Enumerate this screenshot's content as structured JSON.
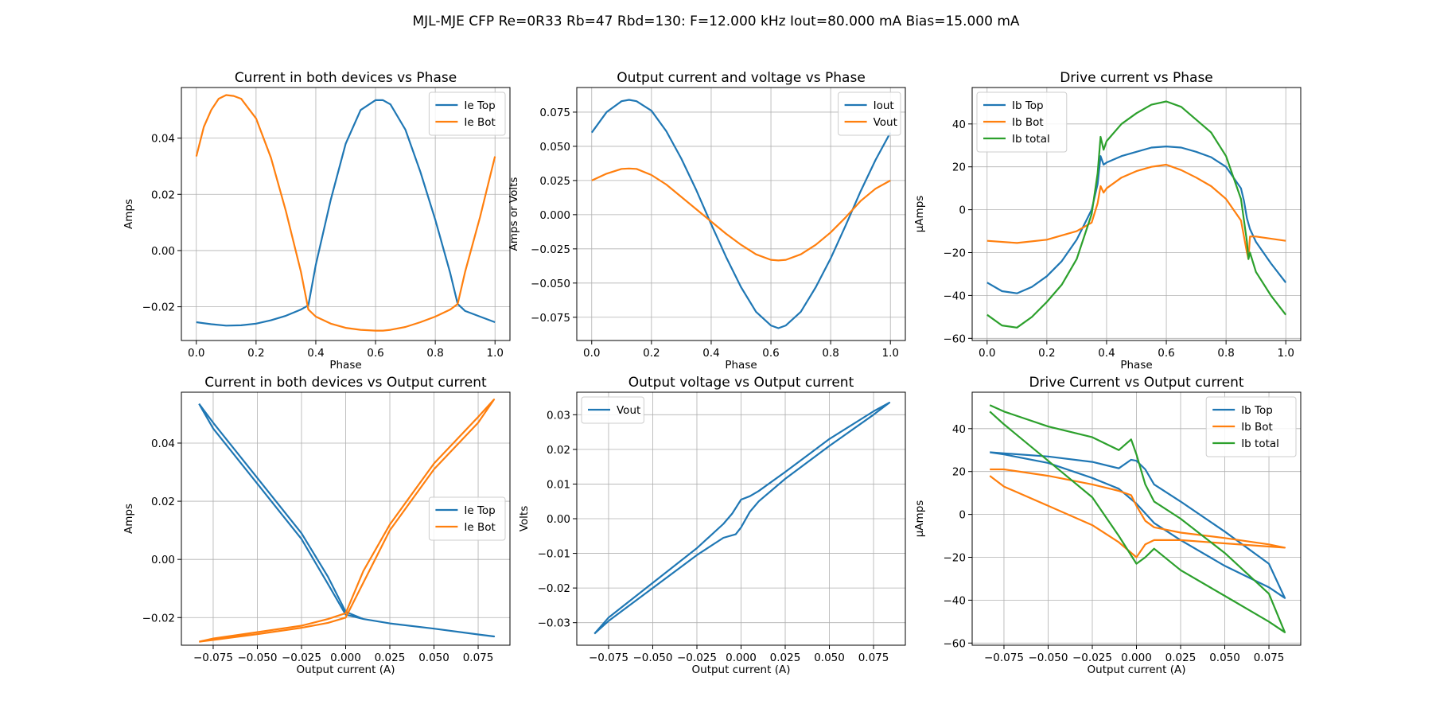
{
  "figure": {
    "suptitle": "MJL-MJE CFP Re=0R33 Rb=47 Rbd=130: F=12.000 kHz Iout=80.000 mA Bias=15.000 mA"
  },
  "colors": {
    "c0": "#1f77b4",
    "c1": "#ff7f0e",
    "c2": "#2ca02c"
  },
  "chart_data": [
    {
      "type": "line",
      "title": "Current in both devices vs Phase",
      "xlabel": "Phase",
      "ylabel": "Amps",
      "xlim": [
        -0.05,
        1.05
      ],
      "ylim": [
        -0.032,
        0.058
      ],
      "xticks": [
        0.0,
        0.2,
        0.4,
        0.6,
        0.8,
        1.0
      ],
      "xtick_labels": [
        "0.0",
        "0.2",
        "0.4",
        "0.6",
        "0.8",
        "1.0"
      ],
      "yticks": [
        -0.02,
        0.0,
        0.02,
        0.04
      ],
      "ytick_labels": [
        "−0.02",
        "0.00",
        "0.02",
        "0.04"
      ],
      "grid": true,
      "legend": "upper-right",
      "series": [
        {
          "name": "Ie Top",
          "color": "#1f77b4",
          "x": [
            0.0,
            0.05,
            0.1,
            0.15,
            0.2,
            0.25,
            0.3,
            0.35,
            0.375,
            0.4,
            0.45,
            0.5,
            0.55,
            0.6,
            0.625,
            0.65,
            0.7,
            0.75,
            0.8,
            0.85,
            0.875,
            0.9,
            0.95,
            1.0
          ],
          "y": [
            -0.0255,
            -0.0262,
            -0.0267,
            -0.0266,
            -0.026,
            -0.0248,
            -0.0232,
            -0.021,
            -0.0195,
            -0.005,
            0.018,
            0.038,
            0.05,
            0.0535,
            0.0535,
            0.052,
            0.043,
            0.028,
            0.011,
            -0.008,
            -0.019,
            -0.0215,
            -0.0235,
            -0.0255
          ]
        },
        {
          "name": "Ie Bot",
          "color": "#ff7f0e",
          "x": [
            0.0,
            0.025,
            0.05,
            0.075,
            0.1,
            0.125,
            0.15,
            0.2,
            0.25,
            0.3,
            0.35,
            0.375,
            0.4,
            0.45,
            0.5,
            0.55,
            0.6,
            0.625,
            0.65,
            0.7,
            0.75,
            0.8,
            0.85,
            0.875,
            0.9,
            0.95,
            1.0
          ],
          "y": [
            0.0335,
            0.044,
            0.05,
            0.054,
            0.0553,
            0.055,
            0.054,
            0.047,
            0.033,
            0.014,
            -0.0075,
            -0.021,
            -0.0235,
            -0.026,
            -0.0275,
            -0.0282,
            -0.0285,
            -0.0285,
            -0.0282,
            -0.0272,
            -0.0255,
            -0.0235,
            -0.021,
            -0.019,
            -0.0075,
            0.012,
            0.0335
          ]
        }
      ]
    },
    {
      "type": "line",
      "title": "Output current and voltage vs Phase",
      "xlabel": "Phase",
      "ylabel": "Amps or Volts",
      "xlim": [
        -0.05,
        1.05
      ],
      "ylim": [
        -0.092,
        0.093
      ],
      "xticks": [
        0.0,
        0.2,
        0.4,
        0.6,
        0.8,
        1.0
      ],
      "xtick_labels": [
        "0.0",
        "0.2",
        "0.4",
        "0.6",
        "0.8",
        "1.0"
      ],
      "yticks": [
        -0.075,
        -0.05,
        -0.025,
        0.0,
        0.025,
        0.05,
        0.075
      ],
      "ytick_labels": [
        "−0.075",
        "−0.050",
        "−0.025",
        "0.000",
        "0.025",
        "0.050",
        "0.075"
      ],
      "grid": true,
      "legend": "upper-right",
      "series": [
        {
          "name": "Iout",
          "color": "#1f77b4",
          "x": [
            0.0,
            0.05,
            0.1,
            0.125,
            0.15,
            0.2,
            0.25,
            0.3,
            0.35,
            0.4,
            0.45,
            0.5,
            0.55,
            0.6,
            0.625,
            0.65,
            0.7,
            0.75,
            0.8,
            0.85,
            0.9,
            0.95,
            1.0
          ],
          "y": [
            0.06,
            0.075,
            0.083,
            0.084,
            0.083,
            0.076,
            0.061,
            0.041,
            0.018,
            -0.007,
            -0.031,
            -0.053,
            -0.071,
            -0.081,
            -0.083,
            -0.081,
            -0.071,
            -0.053,
            -0.032,
            -0.008,
            0.017,
            0.04,
            0.06
          ]
        },
        {
          "name": "Vout",
          "color": "#ff7f0e",
          "x": [
            0.0,
            0.05,
            0.1,
            0.125,
            0.15,
            0.2,
            0.25,
            0.3,
            0.35,
            0.4,
            0.45,
            0.5,
            0.55,
            0.6,
            0.625,
            0.65,
            0.7,
            0.75,
            0.8,
            0.85,
            0.9,
            0.95,
            1.0
          ],
          "y": [
            0.025,
            0.03,
            0.0335,
            0.0338,
            0.0335,
            0.029,
            0.022,
            0.013,
            0.004,
            -0.005,
            -0.014,
            -0.022,
            -0.029,
            -0.033,
            -0.0335,
            -0.033,
            -0.029,
            -0.022,
            -0.013,
            -0.002,
            0.01,
            0.019,
            0.025
          ]
        }
      ]
    },
    {
      "type": "line",
      "title": "Drive current vs Phase",
      "xlabel": "Phase",
      "ylabel": "µAmps",
      "xlim": [
        -0.05,
        1.05
      ],
      "ylim": [
        -61,
        57
      ],
      "xticks": [
        0.0,
        0.2,
        0.4,
        0.6,
        0.8,
        1.0
      ],
      "xtick_labels": [
        "0.0",
        "0.2",
        "0.4",
        "0.6",
        "0.8",
        "1.0"
      ],
      "yticks": [
        -60,
        -40,
        -20,
        0,
        20,
        40
      ],
      "ytick_labels": [
        "−60",
        "−40",
        "−20",
        "0",
        "20",
        "40"
      ],
      "grid": true,
      "legend": "upper-left",
      "series": [
        {
          "name": "Ib Top",
          "color": "#1f77b4",
          "x": [
            0.0,
            0.05,
            0.1,
            0.15,
            0.2,
            0.25,
            0.3,
            0.35,
            0.37,
            0.38,
            0.39,
            0.4,
            0.45,
            0.5,
            0.55,
            0.6,
            0.65,
            0.7,
            0.75,
            0.8,
            0.85,
            0.86,
            0.87,
            0.88,
            0.9,
            0.95,
            1.0
          ],
          "y": [
            -34,
            -38,
            -39,
            -36,
            -31,
            -24,
            -14,
            0,
            12,
            25,
            21,
            22,
            25,
            27,
            29,
            29.5,
            29,
            27,
            24.5,
            20,
            10,
            4,
            -4,
            -9,
            -15,
            -25,
            -34
          ]
        },
        {
          "name": "Ib Bot",
          "color": "#ff7f0e",
          "x": [
            0.0,
            0.1,
            0.2,
            0.25,
            0.3,
            0.35,
            0.37,
            0.38,
            0.39,
            0.4,
            0.45,
            0.5,
            0.55,
            0.6,
            0.65,
            0.7,
            0.75,
            0.8,
            0.85,
            0.87,
            0.875,
            0.88,
            0.9,
            1.0
          ],
          "y": [
            -14.5,
            -15.5,
            -14,
            -12,
            -10,
            -6,
            3,
            11,
            8,
            10,
            15,
            18,
            20,
            21,
            18.5,
            15,
            11,
            5,
            -5,
            -20,
            -23,
            -12.5,
            -12.5,
            -14.5
          ]
        },
        {
          "name": "Ib total",
          "color": "#2ca02c",
          "x": [
            0.0,
            0.05,
            0.1,
            0.15,
            0.2,
            0.25,
            0.3,
            0.35,
            0.37,
            0.38,
            0.39,
            0.4,
            0.45,
            0.5,
            0.55,
            0.6,
            0.65,
            0.7,
            0.75,
            0.8,
            0.85,
            0.87,
            0.875,
            0.88,
            0.9,
            0.95,
            1.0
          ],
          "y": [
            -49,
            -54,
            -55,
            -50,
            -43,
            -35,
            -23,
            -2,
            17,
            34,
            28,
            32,
            40,
            45,
            49,
            50.5,
            48,
            42,
            36,
            25,
            5,
            -15,
            -23,
            -20,
            -29,
            -40,
            -49
          ]
        }
      ]
    },
    {
      "type": "line",
      "title": "Current in both devices vs Output current",
      "xlabel": "Output current (A)",
      "ylabel": "Amps",
      "xlim": [
        -0.093,
        0.093
      ],
      "ylim": [
        -0.0295,
        0.0575
      ],
      "xticks": [
        -0.075,
        -0.05,
        -0.025,
        0.0,
        0.025,
        0.05,
        0.075
      ],
      "xtick_labels": [
        "−0.075",
        "−0.050",
        "−0.025",
        "0.000",
        "0.025",
        "0.050",
        "0.075"
      ],
      "yticks": [
        -0.02,
        0.0,
        0.02,
        0.04
      ],
      "ytick_labels": [
        "−0.02",
        "0.00",
        "0.02",
        "0.04"
      ],
      "grid": true,
      "legend": "center-right",
      "series": [
        {
          "name": "Ie Top",
          "color": "#1f77b4",
          "x": [
            -0.083,
            -0.075,
            -0.05,
            -0.025,
            -0.01,
            0.0,
            0.01,
            0.025,
            0.05,
            0.075,
            0.084,
            0.075,
            0.05,
            0.025,
            0.01,
            0.0,
            -0.01,
            -0.025,
            -0.05,
            -0.075,
            -0.083
          ],
          "y": [
            0.0535,
            0.047,
            0.028,
            0.009,
            -0.006,
            -0.018,
            -0.0205,
            -0.022,
            -0.0238,
            -0.0258,
            -0.0265,
            -0.0258,
            -0.0238,
            -0.022,
            -0.0205,
            -0.019,
            -0.0085,
            0.007,
            0.026,
            0.045,
            0.0535
          ]
        },
        {
          "name": "Ie Bot",
          "color": "#ff7f0e",
          "x": [
            -0.083,
            -0.075,
            -0.05,
            -0.025,
            -0.01,
            0.0,
            0.01,
            0.025,
            0.05,
            0.075,
            0.084,
            0.075,
            0.05,
            0.025,
            0.01,
            0.0,
            -0.01,
            -0.025,
            -0.05,
            -0.075,
            -0.083
          ],
          "y": [
            -0.0283,
            -0.0277,
            -0.0257,
            -0.0235,
            -0.0218,
            -0.02,
            -0.008,
            0.01,
            0.031,
            0.047,
            0.055,
            0.049,
            0.033,
            0.012,
            -0.004,
            -0.0185,
            -0.0205,
            -0.0228,
            -0.025,
            -0.0272,
            -0.0283
          ]
        }
      ]
    },
    {
      "type": "line",
      "title": "Output voltage vs Output current",
      "xlabel": "Output current (A)",
      "ylabel": "Volts",
      "xlim": [
        -0.093,
        0.093
      ],
      "ylim": [
        -0.0365,
        0.0365
      ],
      "xticks": [
        -0.075,
        -0.05,
        -0.025,
        0.0,
        0.025,
        0.05,
        0.075
      ],
      "xtick_labels": [
        "−0.075",
        "−0.050",
        "−0.025",
        "0.000",
        "0.025",
        "0.050",
        "0.075"
      ],
      "yticks": [
        -0.03,
        -0.02,
        -0.01,
        0.0,
        0.01,
        0.02,
        0.03
      ],
      "ytick_labels": [
        "−0.03",
        "−0.02",
        "−0.01",
        "0.00",
        "0.01",
        "0.02",
        "0.03"
      ],
      "grid": true,
      "legend": "upper-left",
      "series": [
        {
          "name": "Vout",
          "color": "#1f77b4",
          "x": [
            -0.083,
            -0.075,
            -0.05,
            -0.025,
            -0.01,
            -0.003,
            0.0,
            0.005,
            0.01,
            0.025,
            0.05,
            0.075,
            0.084,
            0.075,
            0.05,
            0.025,
            0.01,
            0.005,
            0.0,
            -0.005,
            -0.01,
            -0.025,
            -0.05,
            -0.075,
            -0.083
          ],
          "y": [
            -0.0332,
            -0.0295,
            -0.02,
            -0.0105,
            -0.0055,
            -0.0045,
            -0.0025,
            0.002,
            0.005,
            0.0115,
            0.021,
            0.03,
            0.0335,
            0.031,
            0.023,
            0.0135,
            0.008,
            0.0065,
            0.0055,
            0.0015,
            -0.0015,
            -0.0085,
            -0.0185,
            -0.0285,
            -0.0332
          ]
        }
      ]
    },
    {
      "type": "line",
      "title": "Drive Current vs Output current",
      "xlabel": "Output current (A)",
      "ylabel": "µAmps",
      "xlim": [
        -0.093,
        0.093
      ],
      "ylim": [
        -61,
        57
      ],
      "xticks": [
        -0.075,
        -0.05,
        -0.025,
        0.0,
        0.025,
        0.05,
        0.075
      ],
      "xtick_labels": [
        "−0.075",
        "−0.050",
        "−0.025",
        "0.000",
        "0.025",
        "0.050",
        "0.075"
      ],
      "yticks": [
        -60,
        -40,
        -20,
        0,
        20,
        40
      ],
      "ytick_labels": [
        "−60",
        "−40",
        "−20",
        "0",
        "20",
        "40"
      ],
      "grid": true,
      "legend": "upper-right",
      "series": [
        {
          "name": "Ib Top",
          "color": "#1f77b4",
          "x": [
            -0.083,
            -0.075,
            -0.05,
            -0.025,
            -0.01,
            -0.003,
            0.0,
            0.005,
            0.01,
            0.025,
            0.05,
            0.075,
            0.084,
            0.075,
            0.05,
            0.025,
            0.01,
            0.0,
            -0.01,
            -0.025,
            -0.05,
            -0.075,
            -0.083
          ],
          "y": [
            29,
            28.5,
            27,
            24.5,
            21.5,
            25.5,
            25,
            21,
            14,
            6,
            -8,
            -23,
            -39,
            -34,
            -24,
            -12,
            -4,
            5,
            12,
            17,
            24,
            28,
            29
          ]
        },
        {
          "name": "Ib Bot",
          "color": "#ff7f0e",
          "x": [
            -0.083,
            -0.075,
            -0.05,
            -0.025,
            -0.01,
            -0.003,
            0.0,
            0.005,
            0.01,
            0.025,
            0.05,
            0.075,
            0.084,
            0.075,
            0.05,
            0.025,
            0.01,
            0.005,
            0.0,
            -0.01,
            -0.025,
            -0.05,
            -0.075,
            -0.083
          ],
          "y": [
            21,
            21,
            18,
            14,
            11,
            9,
            4,
            -3,
            -6,
            -8.5,
            -11,
            -14,
            -15.5,
            -15,
            -13.5,
            -12,
            -12,
            -14,
            -20,
            -13,
            -5,
            4,
            13,
            18
          ]
        },
        {
          "name": "Ib total",
          "color": "#2ca02c",
          "x": [
            -0.083,
            -0.075,
            -0.05,
            -0.025,
            -0.01,
            -0.003,
            0.0,
            0.005,
            0.01,
            0.025,
            0.05,
            0.075,
            0.084,
            0.075,
            0.05,
            0.025,
            0.01,
            0.005,
            0.0,
            -0.01,
            -0.025,
            -0.05,
            -0.075,
            -0.083
          ],
          "y": [
            51,
            48,
            41,
            36,
            30,
            35,
            28,
            14,
            6,
            -2,
            -18,
            -37,
            -55,
            -50,
            -38,
            -26,
            -16,
            -20,
            -23,
            -10,
            8,
            25,
            42,
            48
          ]
        }
      ]
    }
  ]
}
